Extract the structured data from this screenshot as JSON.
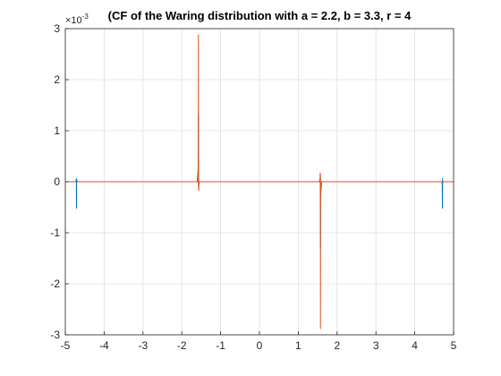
{
  "chart_data": {
    "type": "line",
    "title": "(CF of the Waring distribution with a = 2.2, b = 3.3, r = 4",
    "xlabel": "",
    "ylabel": "",
    "xlim": [
      -5,
      5
    ],
    "ylim": [
      -3,
      3
    ],
    "y_exponent_label": "×10",
    "y_exponent_value": "-3",
    "xticks": [
      -5,
      -4,
      -3,
      -2,
      -1,
      0,
      1,
      2,
      3,
      4,
      5
    ],
    "yticks": [
      -3,
      -2,
      -1,
      0,
      1,
      2,
      3
    ],
    "grid": true,
    "series": [
      {
        "color": "#0072BD",
        "x": [
          -5,
          -4.74,
          -4.72,
          -4.715,
          -4.712,
          -4.709,
          -4.7,
          -4.68,
          -1.6,
          -1.575,
          -1.572,
          -1.57,
          -1.568,
          -1.565,
          -1.54,
          1.54,
          1.565,
          1.568,
          1.57,
          1.572,
          1.575,
          1.6,
          4.68,
          4.7,
          4.709,
          4.712,
          4.715,
          4.72,
          4.74,
          5
        ],
        "y": [
          0,
          0,
          0.02,
          0.06,
          -0.52,
          0.05,
          0.01,
          0,
          0,
          0.3,
          1.3,
          -0.1,
          0.15,
          -0.05,
          0,
          0,
          0.05,
          -0.15,
          0.1,
          -1.3,
          -0.3,
          0,
          0,
          -0.01,
          -0.05,
          -0.52,
          0.06,
          -0.02,
          0,
          0
        ]
      },
      {
        "color": "#D95319",
        "x": [
          -5,
          -1.6,
          -1.58,
          -1.575,
          -1.572,
          -1.57,
          -1.568,
          -1.565,
          -1.56,
          -1.54,
          1.54,
          1.56,
          1.565,
          1.568,
          1.57,
          1.572,
          1.575,
          1.58,
          1.6,
          5
        ],
        "y": [
          0,
          0,
          0.05,
          0.4,
          2.88,
          -0.15,
          0.5,
          -0.17,
          -0.05,
          0,
          0,
          0.05,
          0.17,
          -0.5,
          0.15,
          -2.88,
          -0.4,
          -0.05,
          0,
          0
        ]
      }
    ]
  }
}
